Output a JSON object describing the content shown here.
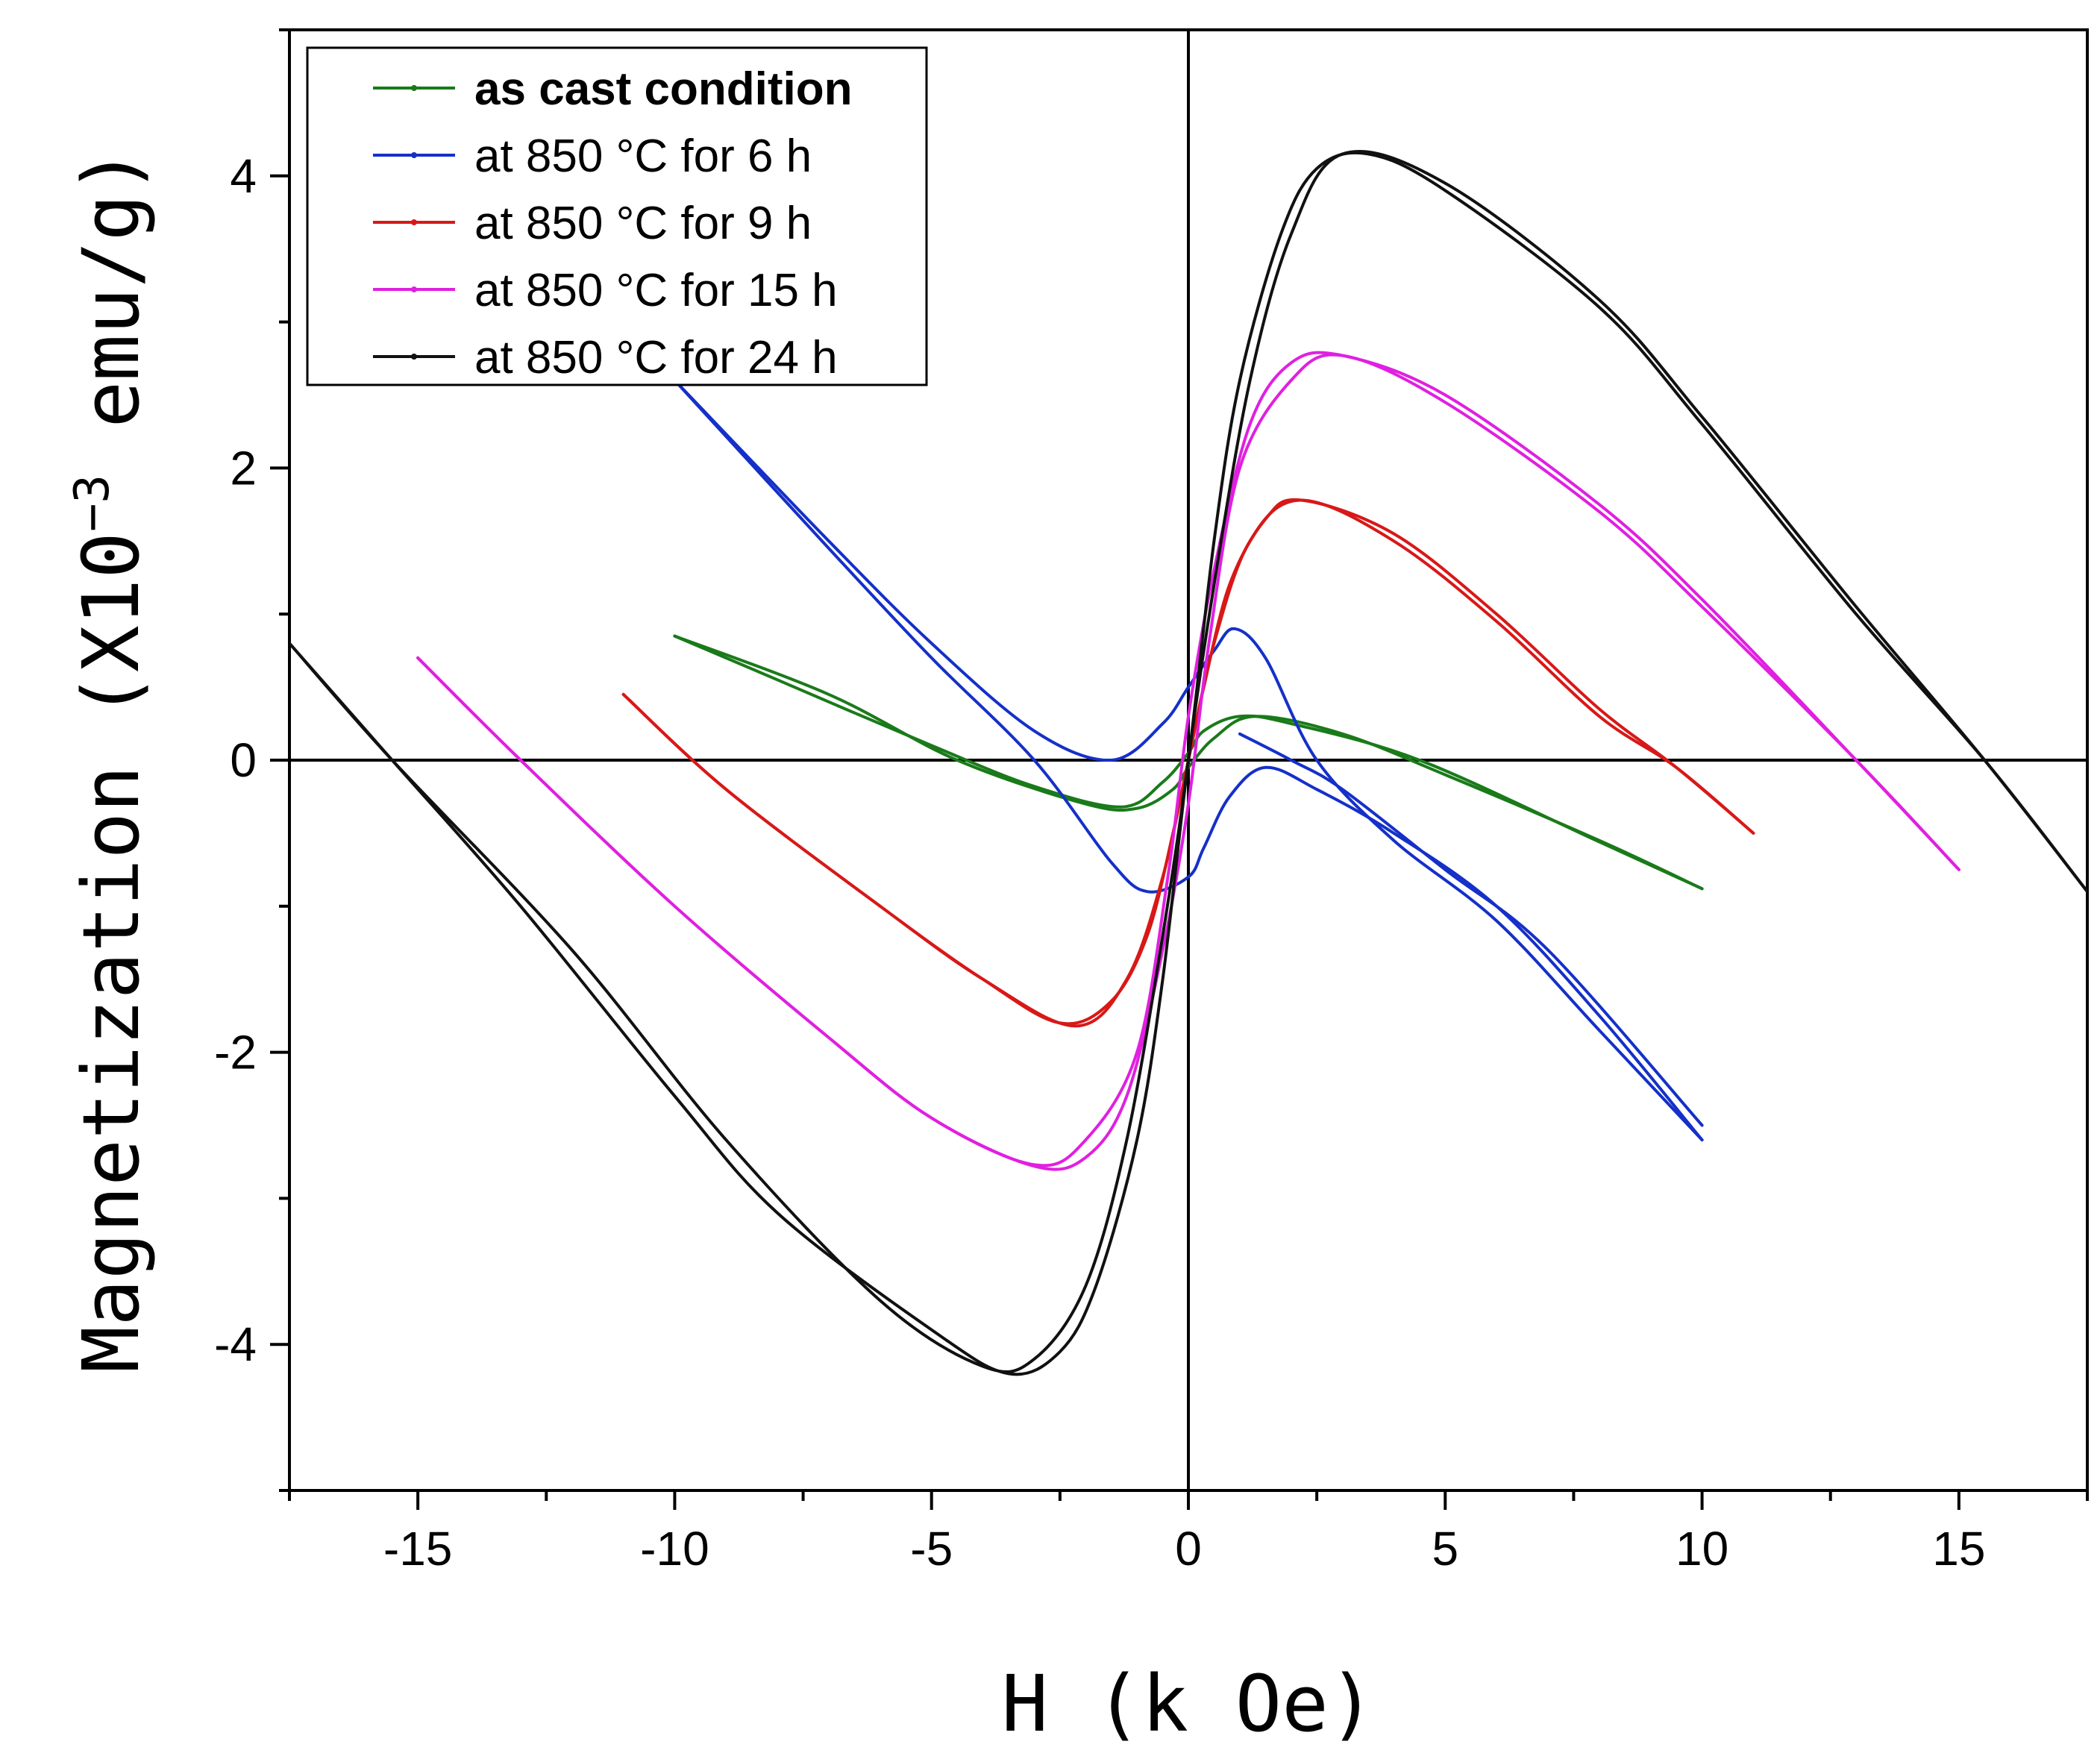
{
  "chart_data": {
    "type": "line",
    "title": "",
    "xlabel": "H (k Oe)",
    "ylabel_main": "Magnetization (X10",
    "ylabel_sup": "−3",
    "ylabel_tail": " emu/g)",
    "xlim": [
      -17.5,
      17.5
    ],
    "ylim": [
      -5,
      5
    ],
    "x_ticks": [
      -15,
      -10,
      -5,
      0,
      5,
      10,
      15
    ],
    "x_tick_labels": [
      "-15",
      "-10",
      "-5",
      "0",
      "5",
      "10",
      "15"
    ],
    "y_ticks": [
      -4,
      -2,
      0,
      2,
      4
    ],
    "y_tick_labels": [
      "-4",
      "-2",
      "0",
      "2",
      "4"
    ],
    "grid": false,
    "legend_position": "top-left",
    "series": [
      {
        "name": "as cast condition",
        "color": "#1a7a1a",
        "bold_label": true,
        "branches": [
          [
            [
              -10,
              0.85
            ],
            [
              -7,
              0.45
            ],
            [
              -4.5,
              0.0
            ],
            [
              -2,
              -0.3
            ],
            [
              -1,
              -0.33
            ],
            [
              -0.3,
              -0.2
            ],
            [
              0,
              -0.05
            ],
            [
              0.5,
              0.15
            ],
            [
              1.3,
              0.3
            ],
            [
              3,
              0.18
            ],
            [
              5,
              -0.1
            ],
            [
              8,
              -0.55
            ],
            [
              10,
              -0.88
            ]
          ],
          [
            [
              10,
              -0.88
            ],
            [
              8,
              -0.56
            ],
            [
              4.5,
              0.0
            ],
            [
              2,
              0.25
            ],
            [
              1,
              0.3
            ],
            [
              0.3,
              0.2
            ],
            [
              0,
              0.05
            ],
            [
              -0.5,
              -0.15
            ],
            [
              -1.3,
              -0.32
            ],
            [
              -3,
              -0.18
            ],
            [
              -5,
              0.1
            ],
            [
              -8,
              0.55
            ],
            [
              -10,
              0.85
            ]
          ]
        ]
      },
      {
        "name": "at 850 °C for 6 h",
        "color": "#1530c8",
        "bold_label": false,
        "branches": [
          [
            [
              -10,
              2.6
            ],
            [
              -7,
              1.5
            ],
            [
              -5,
              0.8
            ],
            [
              -3,
              0.2
            ],
            [
              -1.5,
              0.0
            ],
            [
              -0.5,
              0.25
            ],
            [
              0,
              0.5
            ],
            [
              0.5,
              0.75
            ],
            [
              0.9,
              0.9
            ],
            [
              1.5,
              0.7
            ],
            [
              2.5,
              0.0
            ],
            [
              4,
              -0.55
            ],
            [
              6,
              -1.1
            ],
            [
              8,
              -1.85
            ],
            [
              10,
              -2.6
            ]
          ],
          [
            [
              10,
              -2.6
            ],
            [
              8,
              -1.75
            ],
            [
              6,
              -1.0
            ],
            [
              4,
              -0.5
            ],
            [
              2.5,
              -0.2
            ],
            [
              1.5,
              -0.05
            ],
            [
              0.8,
              -0.25
            ],
            [
              0.3,
              -0.6
            ],
            [
              0,
              -0.8
            ],
            [
              -0.8,
              -0.9
            ],
            [
              -1.5,
              -0.7
            ],
            [
              -3,
              0.0
            ],
            [
              -5,
              0.7
            ],
            [
              -7,
              1.45
            ],
            [
              -10,
              2.6
            ]
          ],
          [
            [
              1,
              0.18
            ],
            [
              2,
              0.0
            ],
            [
              3,
              -0.2
            ],
            [
              5,
              -0.75
            ],
            [
              7,
              -1.3
            ],
            [
              10,
              -2.5
            ]
          ]
        ]
      },
      {
        "name": "at 850 °C for 9 h",
        "color": "#d81818",
        "bold_label": false,
        "branches": [
          [
            [
              -11,
              0.45
            ],
            [
              -9,
              -0.2
            ],
            [
              -6,
              -1.0
            ],
            [
              -4,
              -1.5
            ],
            [
              -2.5,
              -1.8
            ],
            [
              -1.5,
              -1.65
            ],
            [
              -0.8,
              -1.2
            ],
            [
              -0.3,
              -0.5
            ],
            [
              0,
              0.0
            ],
            [
              0.5,
              0.8
            ],
            [
              1.2,
              1.5
            ],
            [
              2.2,
              1.78
            ],
            [
              4,
              1.5
            ],
            [
              6,
              0.95
            ],
            [
              8,
              0.3
            ],
            [
              9.5,
              -0.05
            ],
            [
              11,
              -0.5
            ]
          ],
          [
            [
              11,
              -0.5
            ],
            [
              9.5,
              -0.05
            ],
            [
              8,
              0.35
            ],
            [
              6,
              1.0
            ],
            [
              4,
              1.55
            ],
            [
              2.2,
              1.78
            ],
            [
              1.5,
              1.65
            ],
            [
              0.8,
              1.2
            ],
            [
              0.3,
              0.5
            ],
            [
              0,
              0.0
            ],
            [
              -0.5,
              -0.8
            ],
            [
              -1.2,
              -1.5
            ],
            [
              -2.2,
              -1.82
            ],
            [
              -4,
              -1.5
            ],
            [
              -6,
              -1.0
            ],
            [
              -9,
              -0.2
            ],
            [
              -11,
              0.45
            ]
          ]
        ]
      },
      {
        "name": "at 850 °C for 15 h",
        "color": "#e020e0",
        "bold_label": false,
        "branches": [
          [
            [
              -15,
              0.7
            ],
            [
              -13,
              0.0
            ],
            [
              -10,
              -1.0
            ],
            [
              -7,
              -1.9
            ],
            [
              -5,
              -2.45
            ],
            [
              -3,
              -2.78
            ],
            [
              -2,
              -2.72
            ],
            [
              -1.2,
              -2.3
            ],
            [
              -0.5,
              -1.3
            ],
            [
              0,
              -0.3
            ],
            [
              0.4,
              0.8
            ],
            [
              1,
              2.0
            ],
            [
              2,
              2.6
            ],
            [
              3,
              2.77
            ],
            [
              5,
              2.45
            ],
            [
              8,
              1.7
            ],
            [
              10,
              1.05
            ],
            [
              13,
              0.0
            ],
            [
              15,
              -0.75
            ]
          ],
          [
            [
              15,
              -0.75
            ],
            [
              13,
              0.0
            ],
            [
              10,
              1.1
            ],
            [
              8,
              1.75
            ],
            [
              5,
              2.5
            ],
            [
              3,
              2.77
            ],
            [
              2,
              2.72
            ],
            [
              1.2,
              2.3
            ],
            [
              0.5,
              1.3
            ],
            [
              0,
              0.3
            ],
            [
              -0.4,
              -0.8
            ],
            [
              -1,
              -2.0
            ],
            [
              -2,
              -2.6
            ],
            [
              -3,
              -2.77
            ],
            [
              -5,
              -2.45
            ],
            [
              -7,
              -1.9
            ],
            [
              -10,
              -1.0
            ],
            [
              -13,
              0.0
            ],
            [
              -15,
              0.7
            ]
          ]
        ]
      },
      {
        "name": "at 850 °C for 24 h",
        "color": "#111111",
        "bold_label": false,
        "branches": [
          [
            [
              -17.5,
              0.8
            ],
            [
              -15.5,
              0.0
            ],
            [
              -12,
              -1.3
            ],
            [
              -9,
              -2.6
            ],
            [
              -6,
              -3.7
            ],
            [
              -4,
              -4.15
            ],
            [
              -3,
              -4.1
            ],
            [
              -2,
              -3.6
            ],
            [
              -1.2,
              -2.6
            ],
            [
              -0.5,
              -1.2
            ],
            [
              0,
              0.0
            ],
            [
              0.5,
              1.5
            ],
            [
              1,
              2.6
            ],
            [
              1.8,
              3.6
            ],
            [
              2.5,
              4.05
            ],
            [
              3.5,
              4.15
            ],
            [
              5,
              3.9
            ],
            [
              8,
              3.1
            ],
            [
              10,
              2.3
            ],
            [
              13,
              1.0
            ],
            [
              15.5,
              0.0
            ],
            [
              17.5,
              -0.9
            ]
          ],
          [
            [
              17.5,
              -0.9
            ],
            [
              15.5,
              0.0
            ],
            [
              13,
              1.05
            ],
            [
              10,
              2.35
            ],
            [
              8,
              3.15
            ],
            [
              5,
              3.95
            ],
            [
              3,
              4.15
            ],
            [
              2,
              3.6
            ],
            [
              1.2,
              2.6
            ],
            [
              0.5,
              1.2
            ],
            [
              0,
              0.0
            ],
            [
              -0.5,
              -1.5
            ],
            [
              -1,
              -2.6
            ],
            [
              -1.8,
              -3.6
            ],
            [
              -2.5,
              -4.05
            ],
            [
              -3.5,
              -4.2
            ],
            [
              -5,
              -3.9
            ],
            [
              -8,
              -3.1
            ],
            [
              -10,
              -2.3
            ],
            [
              -13,
              -1.0
            ],
            [
              -15.5,
              0.0
            ],
            [
              -17.5,
              0.8
            ]
          ]
        ]
      }
    ]
  }
}
